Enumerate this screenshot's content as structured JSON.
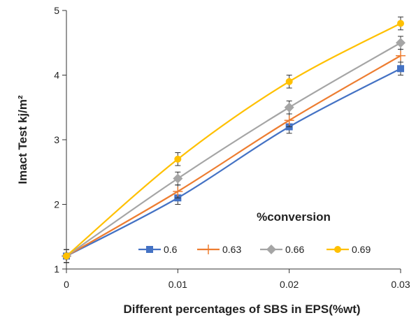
{
  "chart_data": {
    "type": "line",
    "x": [
      0,
      0.01,
      0.02,
      0.03
    ],
    "x_tick_labels": [
      "0",
      "0.01",
      "0.02",
      "0.03"
    ],
    "xlim": [
      0,
      0.03
    ],
    "ylim": [
      1,
      5
    ],
    "y_ticks": [
      1,
      2,
      3,
      4,
      5
    ],
    "y_tick_labels": [
      "1",
      "2",
      "3",
      "4",
      "5"
    ],
    "xlabel": "Different percentages of SBS in EPS(%wt)",
    "ylabel": "Imact Test kj/m²",
    "legend_title": "%conversion",
    "legend_position": "bottom-right inside plot",
    "grid": false,
    "error_bars": 0.1,
    "series": [
      {
        "name": "0.6",
        "values": [
          1.2,
          2.1,
          3.2,
          4.1
        ],
        "color": "#4472C4",
        "marker": "square"
      },
      {
        "name": "0.63",
        "values": [
          1.2,
          2.2,
          3.3,
          4.3
        ],
        "color": "#ED7D31",
        "marker": "plus"
      },
      {
        "name": "0.66",
        "values": [
          1.2,
          2.4,
          3.5,
          4.5
        ],
        "color": "#A5A5A5",
        "marker": "diamond"
      },
      {
        "name": "0.69",
        "values": [
          1.2,
          2.7,
          3.9,
          4.8
        ],
        "color": "#FFC000",
        "marker": "circle"
      }
    ]
  }
}
